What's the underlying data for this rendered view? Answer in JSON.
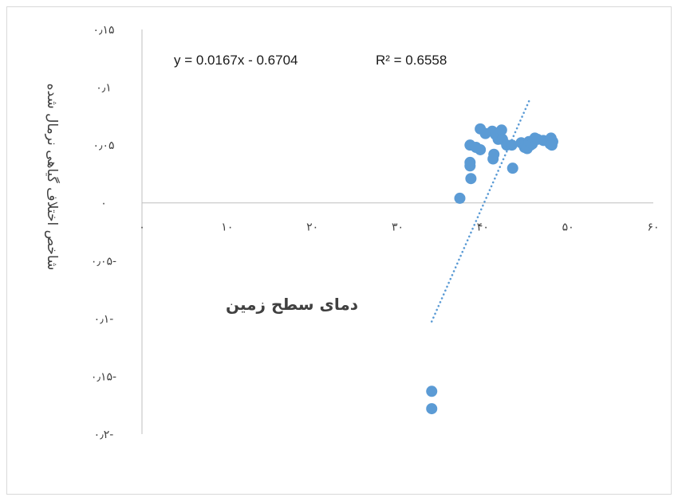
{
  "chart_data": {
    "type": "scatter",
    "title": "",
    "xlabel": "دمای سطح زمین",
    "ylabel": "شاخص اختلاف گیاهی نرمال شده",
    "xlim": [
      0,
      60
    ],
    "ylim": [
      -0.2,
      0.15
    ],
    "x_ticks": [
      0,
      10,
      20,
      30,
      40,
      50,
      60
    ],
    "x_tick_labels": [
      "۰",
      "۱۰",
      "۲۰",
      "۳۰",
      "۴۰",
      "۵۰",
      "۶۰"
    ],
    "y_ticks": [
      0.15,
      0.1,
      0.05,
      0,
      -0.05,
      -0.1,
      -0.15,
      -0.2
    ],
    "y_tick_labels": [
      "۰٫۱۵",
      "۰٫۱",
      "۰٫۰۵",
      "۰",
      "۰٫۰۵-",
      "۰٫۱-",
      "۰٫۱۵-",
      "۰٫۲-"
    ],
    "grid": false,
    "legend": "none",
    "marker_color": "#5b9bd5",
    "series": [
      {
        "points": [
          [
            34,
            -0.163
          ],
          [
            34,
            -0.178
          ],
          [
            37.3,
            0.004
          ],
          [
            38.5,
            0.05
          ],
          [
            38.5,
            0.035
          ],
          [
            38.5,
            0.032
          ],
          [
            38.6,
            0.021
          ],
          [
            39.2,
            0.048
          ],
          [
            39.7,
            0.046
          ],
          [
            39.7,
            0.064
          ],
          [
            40.3,
            0.06
          ],
          [
            41.1,
            0.062
          ],
          [
            41.3,
            0.042
          ],
          [
            41.2,
            0.038
          ],
          [
            41.5,
            0.059
          ],
          [
            41.8,
            0.055
          ],
          [
            42.2,
            0.063
          ],
          [
            42.3,
            0.055
          ],
          [
            42.8,
            0.05
          ],
          [
            43.4,
            0.05
          ],
          [
            43.5,
            0.03
          ],
          [
            44.5,
            0.052
          ],
          [
            44.9,
            0.048
          ],
          [
            45.2,
            0.047
          ],
          [
            45.4,
            0.053
          ],
          [
            45.6,
            0.05
          ],
          [
            45.8,
            0.051
          ],
          [
            46.1,
            0.056
          ],
          [
            46.4,
            0.055
          ],
          [
            47.1,
            0.054
          ],
          [
            47.9,
            0.051
          ],
          [
            48.0,
            0.056
          ],
          [
            48.2,
            0.053
          ],
          [
            48.1,
            0.05
          ]
        ]
      }
    ],
    "trendline": {
      "type": "linear",
      "equation": "y = 0.0167x - 0.6704",
      "r_squared": "R² = 0.6558",
      "slope": 0.0167,
      "intercept": -0.6704,
      "x_range": [
        34,
        45.5
      ],
      "style": "dotted"
    }
  }
}
